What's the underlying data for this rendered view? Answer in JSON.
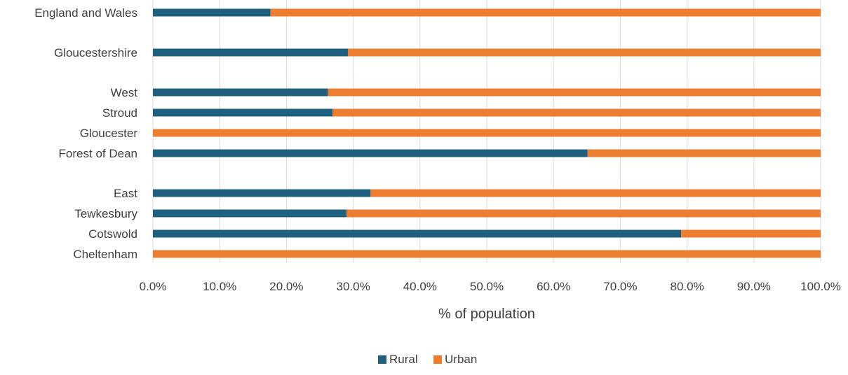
{
  "chart_data": {
    "type": "bar",
    "orientation": "horizontal",
    "stacked": "percent",
    "title": "",
    "xlabel": "% of population",
    "ylabel": "",
    "xlim": [
      0,
      100
    ],
    "x_ticks": [
      "0.0%",
      "10.0%",
      "20.0%",
      "30.0%",
      "40.0%",
      "50.0%",
      "60.0%",
      "70.0%",
      "80.0%",
      "90.0%",
      "100.0%"
    ],
    "grid": true,
    "legend_position": "bottom",
    "categories": [
      "England and Wales",
      "Gloucestershire",
      "West",
      "Stroud",
      "Gloucester",
      "Forest of Dean",
      "East",
      "Tewkesbury",
      "Cotswold",
      "Cheltenham"
    ],
    "series": [
      {
        "name": "Rural",
        "color": "#1f5f7f",
        "values": [
          17.6,
          29.2,
          26.2,
          26.9,
          0.0,
          65.1,
          32.6,
          29.0,
          79.1,
          0.0
        ]
      },
      {
        "name": "Urban",
        "color": "#ed7d31",
        "values": [
          82.4,
          70.8,
          73.8,
          73.1,
          100.0,
          34.9,
          67.4,
          71.0,
          20.9,
          100.0
        ]
      }
    ]
  }
}
